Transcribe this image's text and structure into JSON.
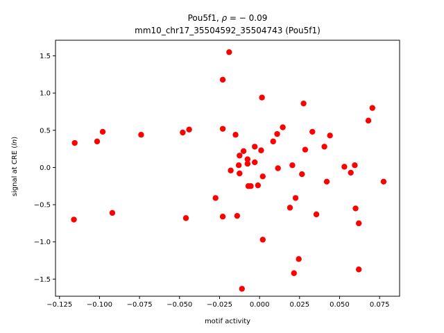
{
  "chart_data": {
    "type": "scatter",
    "title_line1_prefix": "Pou5f1, ",
    "title_rho": "ρ",
    "title_eq": " = − 0.09",
    "title_line2": "mm10_chr17_35504592_35504743 (Pou5f1)",
    "xlabel": "motif activity",
    "ylabel_prefix": "signal at CRE (",
    "ylabel_italic": "ln",
    "ylabel_suffix": ")",
    "xlim": [
      -0.1275,
      0.0875
    ],
    "ylim": [
      -1.73,
      1.71
    ],
    "xticks": [
      -0.125,
      -0.1,
      -0.075,
      -0.05,
      -0.025,
      0.0,
      0.025,
      0.05,
      0.075
    ],
    "xtick_labels": [
      "−0.125",
      "−0.100",
      "−0.075",
      "−0.050",
      "−0.025",
      "0.000",
      "0.025",
      "0.050",
      "0.075"
    ],
    "yticks": [
      -1.5,
      -1.0,
      -0.5,
      0.0,
      0.5,
      1.0,
      1.5
    ],
    "ytick_labels": [
      "−1.5",
      "−1.0",
      "−0.5",
      "0.0",
      "0.5",
      "1.0",
      "1.5"
    ],
    "marker_color": "#ff0000",
    "points": [
      [
        -0.1155,
        0.33
      ],
      [
        -0.116,
        -0.7
      ],
      [
        -0.1015,
        0.35
      ],
      [
        -0.098,
        0.48
      ],
      [
        -0.092,
        -0.61
      ],
      [
        -0.074,
        0.44
      ],
      [
        -0.048,
        0.47
      ],
      [
        -0.046,
        -0.68
      ],
      [
        -0.044,
        0.51
      ],
      [
        -0.0275,
        -0.41
      ],
      [
        -0.023,
        1.18
      ],
      [
        -0.023,
        0.52
      ],
      [
        -0.023,
        -0.66
      ],
      [
        -0.019,
        1.55
      ],
      [
        -0.018,
        -0.04
      ],
      [
        -0.015,
        0.44
      ],
      [
        -0.014,
        -0.65
      ],
      [
        -0.013,
        0.03
      ],
      [
        -0.0125,
        0.16
      ],
      [
        -0.0125,
        -0.08
      ],
      [
        -0.011,
        -1.63
      ],
      [
        -0.01,
        0.22
      ],
      [
        -0.0075,
        0.11
      ],
      [
        -0.0075,
        0.05
      ],
      [
        -0.007,
        -0.25
      ],
      [
        -0.0055,
        -0.25
      ],
      [
        -0.003,
        0.07
      ],
      [
        -0.003,
        0.28
      ],
      [
        -0.001,
        -0.24
      ],
      [
        0.001,
        0.23
      ],
      [
        0.0015,
        0.94
      ],
      [
        0.002,
        -0.12
      ],
      [
        0.002,
        -0.97
      ],
      [
        0.0085,
        0.35
      ],
      [
        0.011,
        0.45
      ],
      [
        0.0115,
        -0.01
      ],
      [
        0.0145,
        0.54
      ],
      [
        0.019,
        -0.54
      ],
      [
        0.0205,
        0.03
      ],
      [
        0.0215,
        -1.42
      ],
      [
        0.0225,
        -0.41
      ],
      [
        0.0245,
        -1.23
      ],
      [
        0.0265,
        -0.09
      ],
      [
        0.0275,
        0.86
      ],
      [
        0.0285,
        0.24
      ],
      [
        0.033,
        0.48
      ],
      [
        0.0355,
        -0.63
      ],
      [
        0.0405,
        0.28
      ],
      [
        0.042,
        -0.19
      ],
      [
        0.044,
        0.43
      ],
      [
        0.053,
        0.01
      ],
      [
        0.057,
        -0.07
      ],
      [
        0.0595,
        0.03
      ],
      [
        0.06,
        -0.55
      ],
      [
        0.062,
        -0.75
      ],
      [
        0.062,
        -1.37
      ],
      [
        0.068,
        0.63
      ],
      [
        0.0705,
        0.8
      ],
      [
        0.0775,
        -0.19
      ]
    ]
  }
}
